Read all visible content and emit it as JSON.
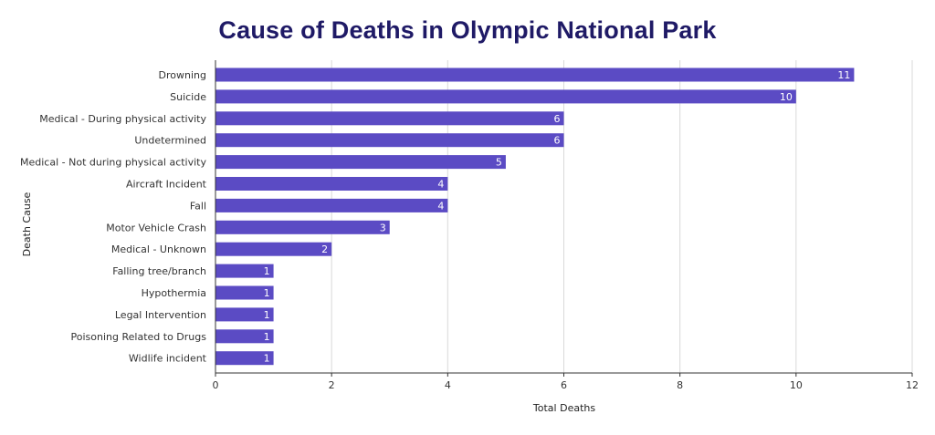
{
  "chart_data": {
    "type": "bar",
    "orientation": "horizontal",
    "title": "Cause of Deaths in Olympic National Park",
    "xlabel": "Total Deaths",
    "ylabel": "Death Cause",
    "xlim": [
      0,
      12
    ],
    "xticks": [
      0,
      2,
      4,
      6,
      8,
      10,
      12
    ],
    "grid": true,
    "legend": "none",
    "bar_color": "#5b4bc4",
    "categories": [
      "Drowning",
      "Suicide",
      "Medical - During physical activity",
      "Undetermined",
      "Medical - Not during physical activity",
      "Aircraft Incident",
      "Fall",
      "Motor Vehicle Crash",
      "Medical - Unknown",
      "Falling tree/branch",
      "Hypothermia",
      "Legal Intervention",
      "Poisoning Related to Drugs",
      "Widlife incident"
    ],
    "values": [
      11,
      10,
      6,
      6,
      5,
      4,
      4,
      3,
      2,
      1,
      1,
      1,
      1,
      1
    ]
  }
}
